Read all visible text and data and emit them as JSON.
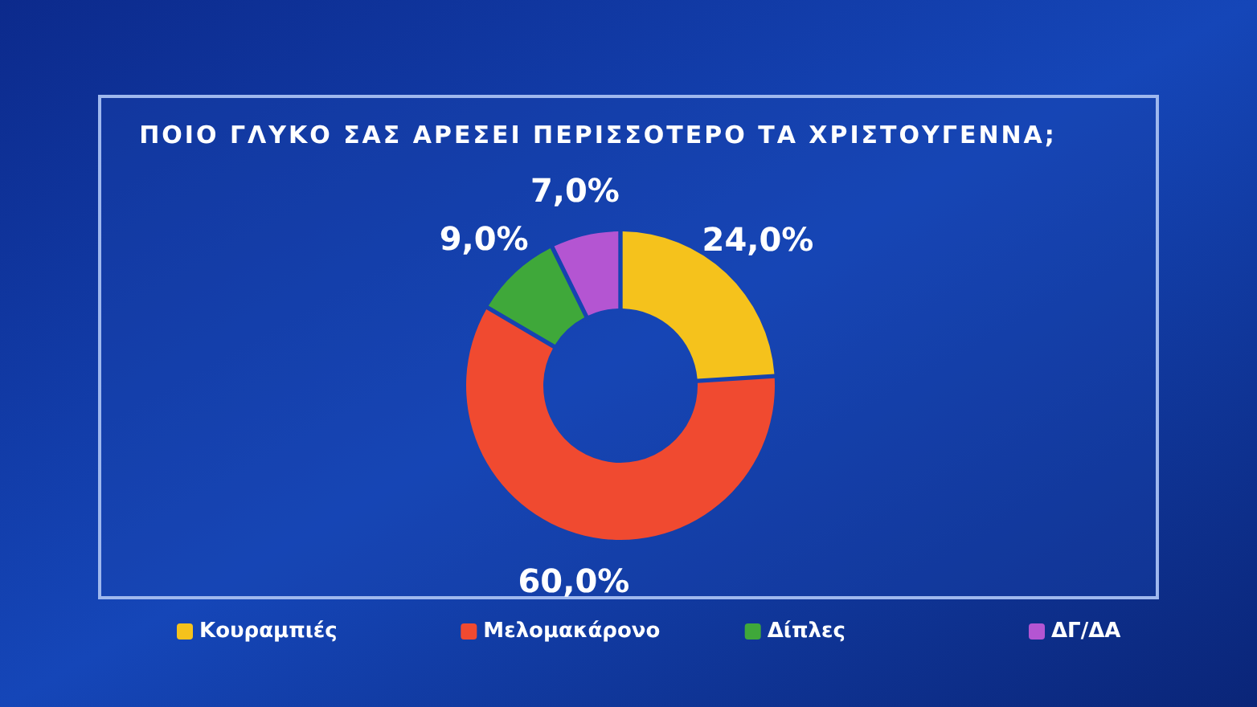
{
  "chart_data": {
    "type": "donut",
    "title": "ΠΟΙΟ ΓΛΥΚΟ ΣΑΣ ΑΡΕΣΕΙ ΠΕΡΙΣΣΟΤΕΡΟ ΤΑ ΧΡΙΣΤΟΥΓΕΝΝΑ;",
    "categories": [
      "Κουραμπιές",
      "Μελομακάρονο",
      "Δίπλες",
      "ΔΓ/ΔΑ"
    ],
    "values": [
      24,
      60,
      9,
      7
    ],
    "colors": [
      "#f5c21c",
      "#f04a30",
      "#3fa83a",
      "#b455d2"
    ],
    "value_labels": [
      "24,0%",
      "60,0%",
      "9,0%",
      "7,0%"
    ],
    "legend": "bottom"
  }
}
